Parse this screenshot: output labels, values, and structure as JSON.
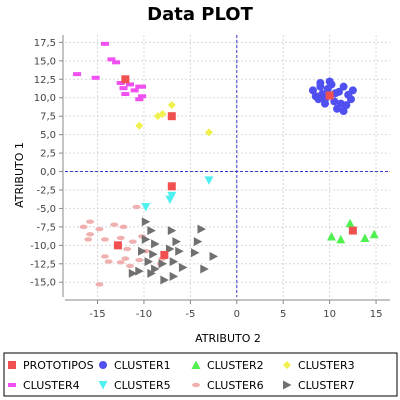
{
  "chart_data": {
    "type": "scatter",
    "title": "Data PLOT",
    "xlabel": "ATRIBUTO 2",
    "ylabel": "ATRIBUTO 1",
    "xlim": [
      -18.5,
      16.5
    ],
    "ylim": [
      -17,
      18.5
    ],
    "xticks": [
      -15,
      -10,
      -5,
      0,
      5,
      10,
      15
    ],
    "xtick_labels": [
      "-15",
      "-10",
      "-5",
      "0",
      "5",
      "10",
      "15"
    ],
    "yticks": [
      17.5,
      15,
      12.5,
      10,
      7.5,
      5,
      2.5,
      0,
      -2.5,
      -5,
      -7.5,
      -10,
      -12.5,
      -15
    ],
    "ytick_labels": [
      "17,5",
      "15,0",
      "12,5",
      "10,0",
      "7,5",
      "5,0",
      "2,5",
      "0,0",
      "-2,5",
      "-5,0",
      "-7,5",
      "-10,0",
      "-12,5",
      "-15,0"
    ],
    "grid": true,
    "zero_lines": true,
    "legend_position": "bottom",
    "series": [
      {
        "name": "PROTOTIPOS",
        "marker": "square",
        "color": "#f05050",
        "points": [
          [
            -12,
            12.5
          ],
          [
            -7,
            7.5
          ],
          [
            10,
            10.3
          ],
          [
            -7,
            -2
          ],
          [
            12.5,
            -8
          ],
          [
            -12.8,
            -10
          ],
          [
            -7.8,
            -11.3
          ]
        ]
      },
      {
        "name": "CLUSTER1",
        "marker": "circle",
        "color": "#5050f0",
        "points": [
          [
            8.2,
            11
          ],
          [
            8.5,
            10.2
          ],
          [
            9,
            11.5
          ],
          [
            9.2,
            10.5
          ],
          [
            9.5,
            9.8
          ],
          [
            9.8,
            11.2
          ],
          [
            10.2,
            11.8
          ],
          [
            10.5,
            9.5
          ],
          [
            11,
            10.8
          ],
          [
            11.2,
            9.2
          ],
          [
            11.5,
            11.5
          ],
          [
            12,
            10.4
          ],
          [
            12.3,
            9.8
          ],
          [
            8.8,
            9.8
          ],
          [
            9.5,
            9.2
          ],
          [
            10.8,
            8.5
          ],
          [
            11.5,
            8.2
          ],
          [
            12.5,
            11
          ],
          [
            10,
            12.2
          ],
          [
            9,
            12
          ],
          [
            10.6,
            10.6
          ],
          [
            11.8,
            9
          ]
        ]
      },
      {
        "name": "CLUSTER2",
        "marker": "triangle-up",
        "color": "#50f050",
        "points": [
          [
            12.2,
            -7
          ],
          [
            10.2,
            -8.8
          ],
          [
            11.2,
            -9.2
          ],
          [
            13.8,
            -9
          ],
          [
            14.8,
            -8.5
          ]
        ]
      },
      {
        "name": "CLUSTER3",
        "marker": "diamond",
        "color": "#f0f050",
        "points": [
          [
            -7,
            9
          ],
          [
            -8,
            7.8
          ],
          [
            -8.5,
            7.5
          ],
          [
            -10.5,
            6.2
          ],
          [
            -3,
            5.3
          ]
        ]
      },
      {
        "name": "CLUSTER4",
        "marker": "rect",
        "color": "#f050f0",
        "points": [
          [
            -14.2,
            17.3
          ],
          [
            -13.5,
            15.2
          ],
          [
            -13,
            14.8
          ],
          [
            -17.2,
            13.2
          ],
          [
            -15.2,
            12.7
          ],
          [
            -12.5,
            12
          ],
          [
            -11.5,
            11.8
          ],
          [
            -11,
            11
          ],
          [
            -10.5,
            11.5
          ],
          [
            -10.2,
            11.5
          ],
          [
            -12.2,
            11.3
          ],
          [
            -12,
            10.5
          ],
          [
            -10.5,
            9.8
          ],
          [
            -10.2,
            10.2
          ]
        ]
      },
      {
        "name": "CLUSTER5",
        "marker": "triangle-down",
        "color": "#50f0f0",
        "points": [
          [
            -3,
            -1.2
          ],
          [
            -9.8,
            -4.8
          ],
          [
            -7,
            -3.3
          ],
          [
            -7.2,
            -3.8
          ]
        ]
      },
      {
        "name": "CLUSTER6",
        "marker": "ellipse",
        "color": "#f0b0b0",
        "points": [
          [
            -10.8,
            -4.8
          ],
          [
            -15.8,
            -6.8
          ],
          [
            -16.5,
            -7.5
          ],
          [
            -14.8,
            -7.8
          ],
          [
            -13.2,
            -7.2
          ],
          [
            -12.2,
            -7.5
          ],
          [
            -15.8,
            -8.5
          ],
          [
            -16,
            -9.2
          ],
          [
            -14.2,
            -9.2
          ],
          [
            -12.5,
            -9
          ],
          [
            -11.2,
            -9.5
          ],
          [
            -10.2,
            -8.8
          ],
          [
            -11.8,
            -10.5
          ],
          [
            -14.2,
            -11.5
          ],
          [
            -13.8,
            -12.2
          ],
          [
            -12.5,
            -12.3
          ],
          [
            -12,
            -11.8
          ],
          [
            -9.8,
            -10.8
          ],
          [
            -10.5,
            -12
          ],
          [
            -8,
            -11.8
          ],
          [
            -8.2,
            -12.5
          ],
          [
            -11.5,
            -12.8
          ],
          [
            -14.8,
            -15.3
          ]
        ]
      },
      {
        "name": "CLUSTER7",
        "marker": "triangle-right",
        "color": "#707070",
        "points": [
          [
            -9.8,
            -6.8
          ],
          [
            -9.2,
            -8
          ],
          [
            -7,
            -8
          ],
          [
            -3.8,
            -7.8
          ],
          [
            -9.8,
            -9.2
          ],
          [
            -8.8,
            -9.8
          ],
          [
            -6.5,
            -9.5
          ],
          [
            -4.2,
            -9.5
          ],
          [
            -10.2,
            -10.8
          ],
          [
            -9,
            -11.2
          ],
          [
            -7.2,
            -10.5
          ],
          [
            -6.2,
            -10.8
          ],
          [
            -4.5,
            -11
          ],
          [
            -2.5,
            -11.5
          ],
          [
            -9.5,
            -12.2
          ],
          [
            -8,
            -12.5
          ],
          [
            -6.8,
            -12.2
          ],
          [
            -10.5,
            -13.5
          ],
          [
            -8.8,
            -13.2
          ],
          [
            -5.8,
            -13
          ],
          [
            -3.5,
            -13.2
          ],
          [
            -11.2,
            -13.8
          ],
          [
            -9.2,
            -13.8
          ],
          [
            -6.8,
            -14.2
          ],
          [
            -7.8,
            -14.7
          ]
        ]
      }
    ]
  }
}
